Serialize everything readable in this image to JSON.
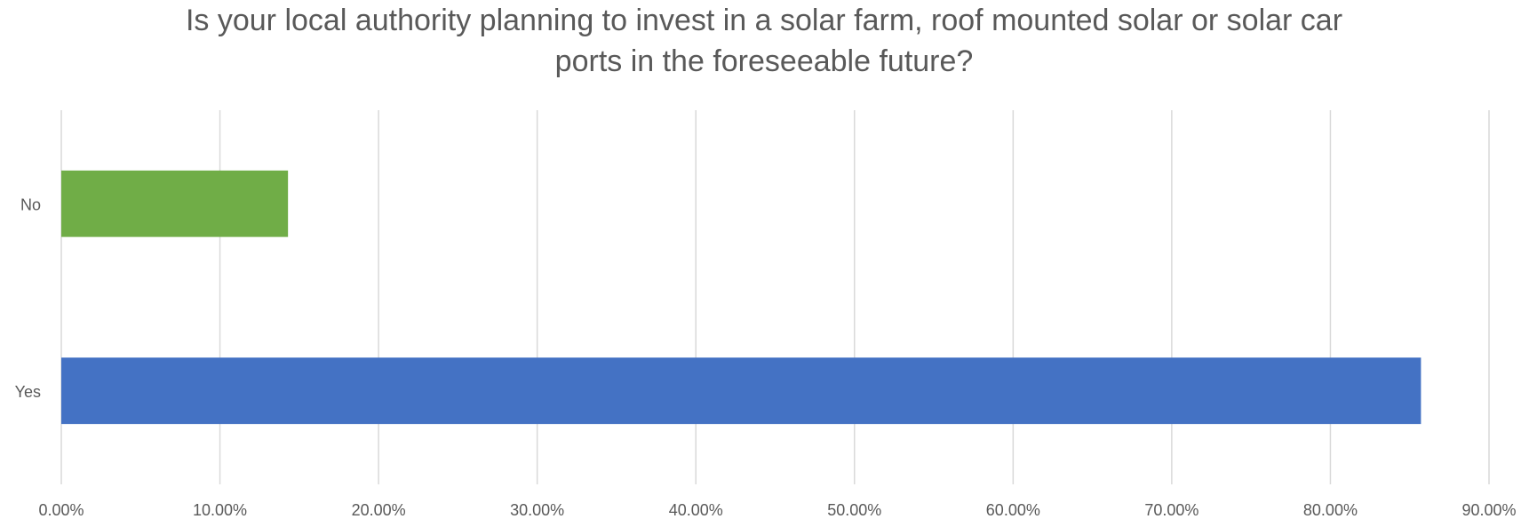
{
  "chart_data": {
    "type": "bar",
    "orientation": "horizontal",
    "title_line1": "Is your local authority planning to invest in a solar farm, roof mounted solar or solar car",
    "title_line2": "ports in the foreseeable future?",
    "categories": [
      "No",
      "Yes"
    ],
    "values": [
      14.29,
      85.71
    ],
    "colors": [
      "#70AD47",
      "#4472C4"
    ],
    "xlim": [
      0,
      90
    ],
    "x_ticks": [
      {
        "value": 0,
        "label": "0.00%"
      },
      {
        "value": 10,
        "label": "10.00%"
      },
      {
        "value": 20,
        "label": "20.00%"
      },
      {
        "value": 30,
        "label": "30.00%"
      },
      {
        "value": 40,
        "label": "40.00%"
      },
      {
        "value": 50,
        "label": "50.00%"
      },
      {
        "value": 60,
        "label": "60.00%"
      },
      {
        "value": 70,
        "label": "70.00%"
      },
      {
        "value": 80,
        "label": "80.00%"
      },
      {
        "value": 90,
        "label": "90.00%"
      }
    ],
    "grid": true,
    "legend": "none"
  }
}
